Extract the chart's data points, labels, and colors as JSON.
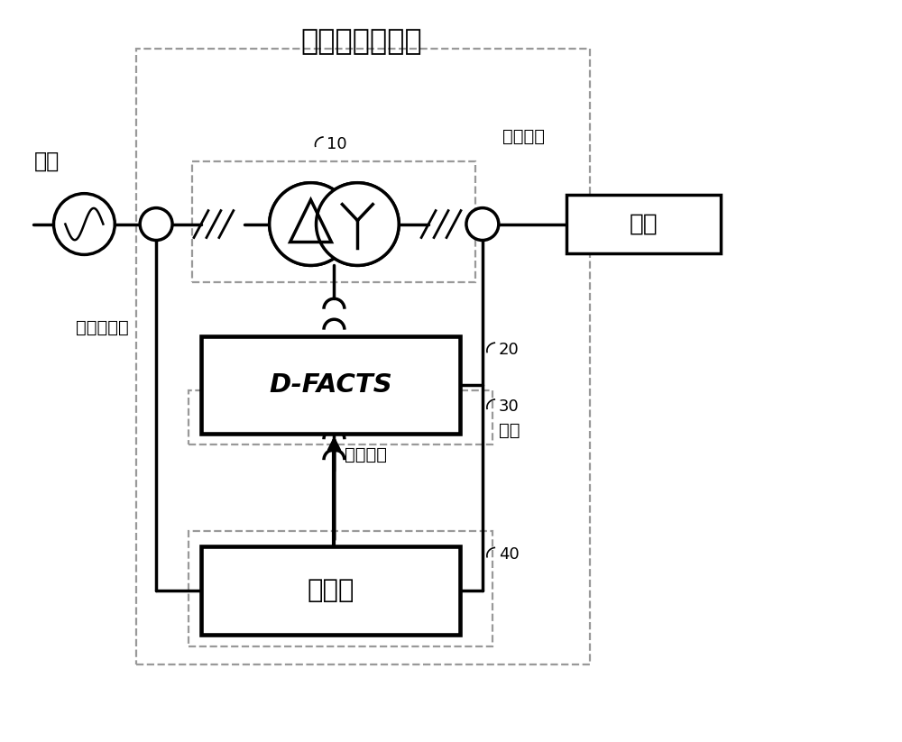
{
  "title": "柔性有载调压器",
  "bg_color": "#ffffff",
  "line_color": "#000000",
  "dashed_color": "#999999",
  "label_grid": "电网",
  "label_load": "负载",
  "label_main_transformer": "主变压器",
  "label_voltage_transformer": "调压变压器",
  "label_dfacts": "D-FACTS",
  "label_controller": "控制器",
  "label_10": "10",
  "label_20": "20",
  "label_30": "30",
  "label_40": "40",
  "label_sampling": "采样",
  "label_drive_pulse": "驱动脉冲",
  "figsize": [
    10.0,
    8.23
  ],
  "dpi": 100
}
